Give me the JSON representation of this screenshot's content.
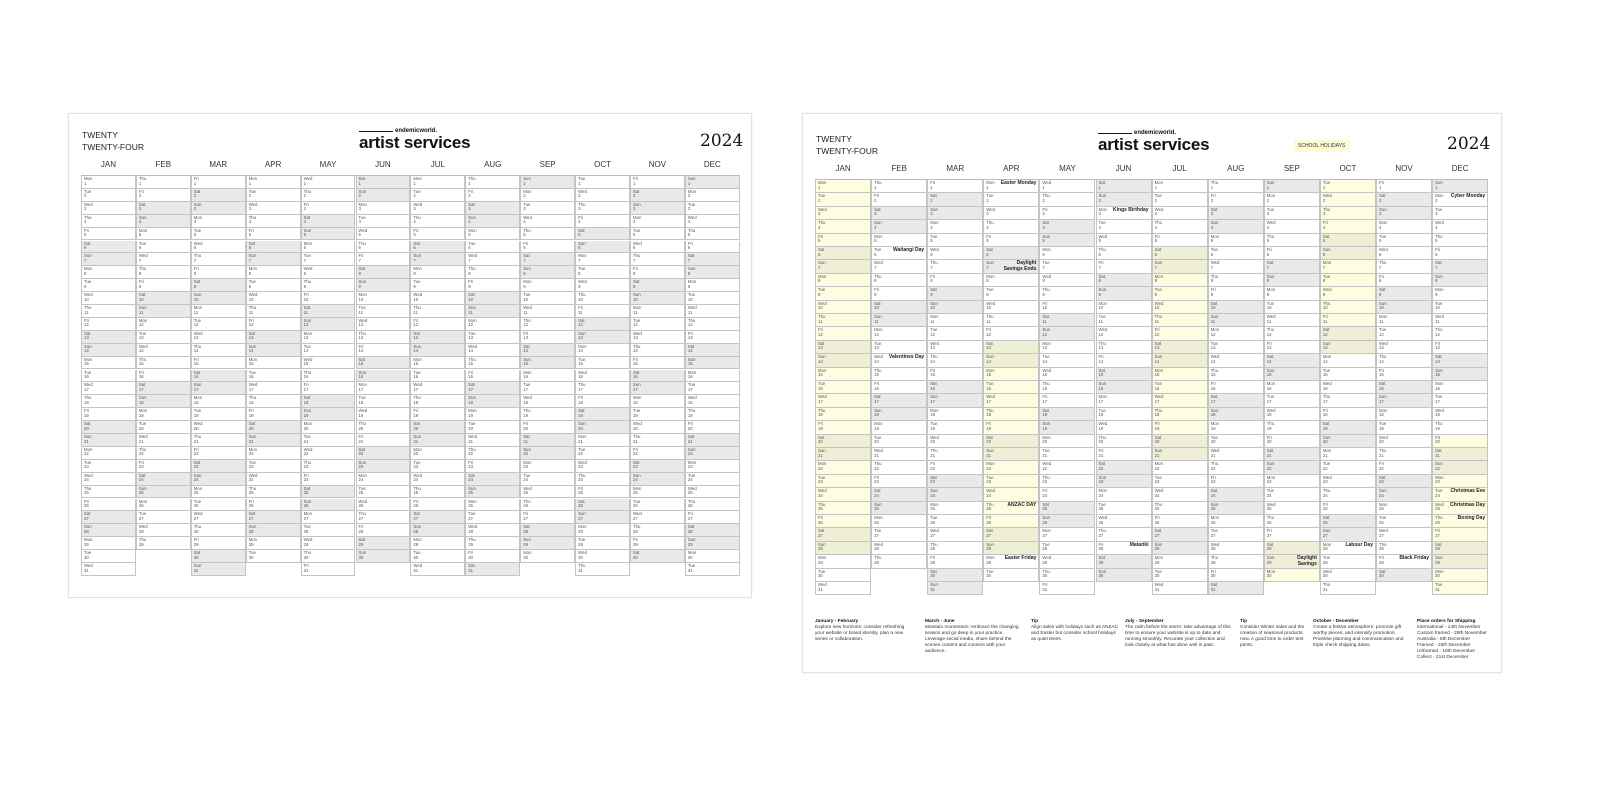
{
  "year": 2024,
  "title_line1": "TWENTY",
  "title_line2": "TWENTY-FOUR",
  "brand_small": "endemicworld.",
  "brand_big": "artist services",
  "year_label": "2024",
  "months": [
    "JAN",
    "FEB",
    "MAR",
    "APR",
    "MAY",
    "JUN",
    "JUL",
    "AUG",
    "SEP",
    "OCT",
    "NOV",
    "DEC"
  ],
  "weekdays": [
    "Sun",
    "Mon",
    "Tue",
    "Wed",
    "Thu",
    "Fri",
    "Sat"
  ],
  "school_holidays_label": "SCHOOL HOLIDAYS",
  "colors": {
    "weekend": "#e9e9e9",
    "school_holiday": "#fdfde2",
    "legend": "#fdfbd2"
  },
  "school_holiday_ranges": [
    [
      "2024-01-01",
      "2024-01-28"
    ],
    [
      "2024-04-13",
      "2024-04-28"
    ],
    [
      "2024-07-06",
      "2024-07-21"
    ],
    [
      "2024-09-28",
      "2024-10-13"
    ],
    [
      "2024-12-20",
      "2024-12-31"
    ]
  ],
  "holidays": [
    {
      "month": 2,
      "day": 6,
      "label": "Waitangi Day"
    },
    {
      "month": 2,
      "day": 14,
      "label": "Valentines Day"
    },
    {
      "month": 4,
      "day": 1,
      "label": "Easter Monday"
    },
    {
      "month": 4,
      "day": 7,
      "label": "Daylight Savings Ends"
    },
    {
      "month": 4,
      "day": 25,
      "label": "ANZAC DAY"
    },
    {
      "month": 4,
      "day": 29,
      "label": "Easter Friday"
    },
    {
      "month": 6,
      "day": 3,
      "label": "Kings Birthday"
    },
    {
      "month": 6,
      "day": 28,
      "label": "Matariki"
    },
    {
      "month": 9,
      "day": 29,
      "label": "Daylight Savings"
    },
    {
      "month": 10,
      "day": 28,
      "label": "Labour Day"
    },
    {
      "month": 11,
      "day": 29,
      "label": "Black Friday"
    },
    {
      "month": 12,
      "day": 2,
      "label": "Cyber Monday"
    },
    {
      "month": 12,
      "day": 24,
      "label": "Christmas Eve"
    },
    {
      "month": 12,
      "day": 25,
      "label": "Christmas Day"
    },
    {
      "month": 12,
      "day": 26,
      "label": "Boxing Day"
    }
  ],
  "notes": [
    {
      "title": "January - February",
      "text": "Explore new horizons: consider refreshing your website or brand identity, plan a new series or collaboration."
    },
    {
      "title": "March - June",
      "text": "Maintain momentum: embrace the changing season and go deep in your practice. Leverage social media, share behind the scenes content and connect with your audience."
    },
    {
      "title": "Tip",
      "text": "Align sales with holidays such as ANZAC and Easter but consider school holidays as quiet times."
    },
    {
      "title": "July - September",
      "text": "The calm before the storm: take advantage of this time to ensure your website is up to date and running smoothly. Recurate your collection and look closely at what has done well in past."
    },
    {
      "title": "Tip",
      "text": "Consider Winter sales and the creation of seasonal products now. A good time to order test prints."
    },
    {
      "title": "October - December",
      "text": "Create a festive atmosphere: promote gift worthy pieces, and intensify promotion. Prioritise planning and communication and triple check shipping dates."
    },
    {
      "title": "Place orders for Shipping",
      "lines": [
        "International - 14th November",
        "Custom framed - 28th November",
        "Australia - 6th December",
        "Framed - 15th December",
        "Unframed - 18th December",
        "Collect - 21st December"
      ]
    }
  ]
}
